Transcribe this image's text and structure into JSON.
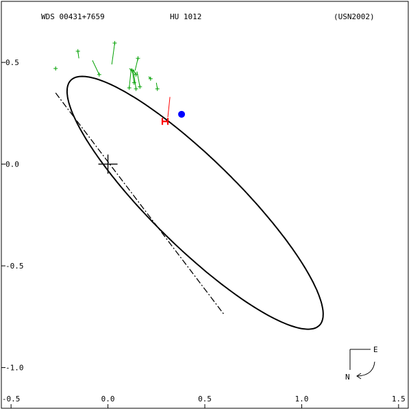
{
  "header": {
    "left": "WDS 00431+7659",
    "center": "HU 1012",
    "right": "(USN2002)"
  },
  "compass": {
    "east_label": "E",
    "north_label": "N"
  },
  "colors": {
    "orbit": "#000000",
    "observations": "#00a000",
    "residuals": "#00a000",
    "predicted_position": "#0000ff",
    "special_marker": "#ff0000",
    "special_residual": "#ff0000"
  },
  "chart_data": {
    "type": "scatter",
    "xlim": [
      -0.55,
      1.55
    ],
    "ylim": [
      -1.2,
      0.8
    ],
    "x_ticks": [
      {
        "value": -0.5,
        "label": "-0.5"
      },
      {
        "value": 0.0,
        "label": "0.0"
      },
      {
        "value": 0.5,
        "label": "0.5"
      },
      {
        "value": 1.0,
        "label": "1.0"
      },
      {
        "value": 1.5,
        "label": "1.5"
      }
    ],
    "y_ticks": [
      {
        "value": 0.5,
        "label": "0.5"
      },
      {
        "value": 0.0,
        "label": "0.0"
      },
      {
        "value": -0.5,
        "label": "-0.5"
      },
      {
        "value": -1.0,
        "label": "-1.0"
      }
    ],
    "primary_star": [
      0.0,
      0.0
    ],
    "orbit": {
      "center": [
        0.45,
        -0.19
      ],
      "semi_major": 0.88,
      "semi_minor": 0.22,
      "rotation_deg": -43
    },
    "line_of_nodes": {
      "from": [
        -0.27,
        0.35
      ],
      "to": [
        0.6,
        -0.74
      ]
    },
    "predicted_position": [
      0.38,
      0.245
    ],
    "special_observation": {
      "point": [
        0.295,
        0.21
      ],
      "orbit_point": [
        0.32,
        0.33
      ],
      "marker": "H"
    },
    "observations": [
      {
        "obs": [
          -0.27,
          0.47
        ],
        "orbit": [
          -0.26,
          0.47
        ]
      },
      {
        "obs": [
          -0.155,
          0.555
        ],
        "orbit": [
          -0.15,
          0.52
        ]
      },
      {
        "obs": [
          -0.045,
          0.44
        ],
        "orbit": [
          -0.08,
          0.51
        ]
      },
      {
        "obs": [
          0.035,
          0.595
        ],
        "orbit": [
          0.02,
          0.49
        ]
      },
      {
        "obs": [
          0.11,
          0.375
        ],
        "orbit": [
          0.12,
          0.47
        ]
      },
      {
        "obs": [
          0.125,
          0.46
        ],
        "orbit": [
          0.11,
          0.47
        ]
      },
      {
        "obs": [
          0.145,
          0.37
        ],
        "orbit": [
          0.13,
          0.465
        ]
      },
      {
        "obs": [
          0.155,
          0.52
        ],
        "orbit": [
          0.14,
          0.46
        ]
      },
      {
        "obs": [
          0.145,
          0.44
        ],
        "orbit": [
          0.13,
          0.465
        ]
      },
      {
        "obs": [
          0.135,
          0.4
        ],
        "orbit": [
          0.125,
          0.465
        ]
      },
      {
        "obs": [
          0.165,
          0.38
        ],
        "orbit": [
          0.15,
          0.455
        ]
      },
      {
        "obs": [
          0.22,
          0.42
        ],
        "orbit": [
          0.21,
          0.43
        ]
      },
      {
        "obs": [
          0.255,
          0.37
        ],
        "orbit": [
          0.25,
          0.4
        ]
      }
    ]
  }
}
